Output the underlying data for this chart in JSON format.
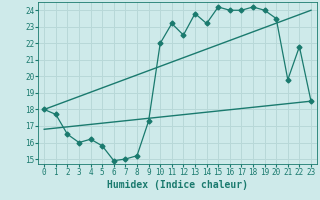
{
  "background_color": "#ceeaea",
  "grid_color": "#b8d8d8",
  "line_color": "#1a7a6e",
  "xlabel": "Humidex (Indice chaleur)",
  "xlim": [
    -0.5,
    23.5
  ],
  "ylim": [
    14.7,
    24.5
  ],
  "yticks": [
    15,
    16,
    17,
    18,
    19,
    20,
    21,
    22,
    23,
    24
  ],
  "xticks": [
    0,
    1,
    2,
    3,
    4,
    5,
    6,
    7,
    8,
    9,
    10,
    11,
    12,
    13,
    14,
    15,
    16,
    17,
    18,
    19,
    20,
    21,
    22,
    23
  ],
  "line1_x": [
    0,
    1,
    2,
    3,
    4,
    5,
    6,
    7,
    8,
    9,
    10,
    11,
    12,
    13,
    14,
    15,
    16,
    17,
    18,
    19,
    20,
    21,
    22,
    23
  ],
  "line1_y": [
    18.0,
    17.7,
    16.5,
    16.0,
    16.2,
    15.8,
    14.9,
    15.0,
    15.2,
    17.3,
    22.0,
    23.2,
    22.5,
    23.8,
    23.2,
    24.2,
    24.0,
    24.0,
    24.2,
    24.0,
    23.5,
    19.8,
    21.8,
    18.5
  ],
  "line2_x": [
    0,
    23
  ],
  "line2_y": [
    18.0,
    24.0
  ],
  "line3_x": [
    0,
    23
  ],
  "line3_y": [
    16.8,
    18.5
  ],
  "tick_fontsize": 5.5,
  "xlabel_fontsize": 7.0
}
